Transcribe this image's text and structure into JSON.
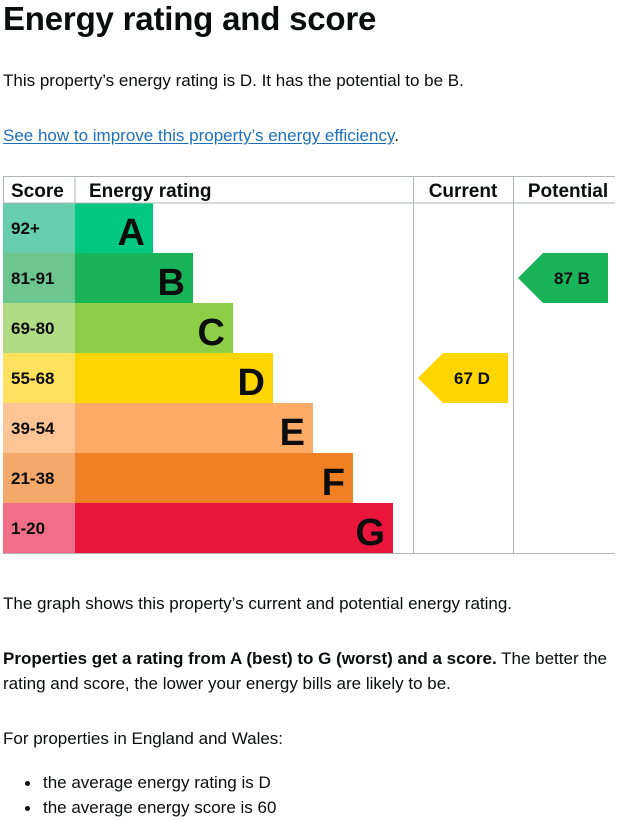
{
  "page": {
    "title": "Energy rating and score",
    "intro": "This property’s energy rating is D. It has the potential to be B.",
    "improve_link": "See how to improve this property’s energy efficiency",
    "improve_link_suffix": ".",
    "graph_caption": "The graph shows this property’s current and potential energy rating.",
    "ratings_bold": "Properties get a rating from A (best) to G (worst) and a score.",
    "ratings_rest": " The better the rating and score, the lower your energy bills are likely to be.",
    "for_properties": "For properties in England and Wales:",
    "bullets": [
      "the average energy rating is D",
      "the average energy score is 60"
    ]
  },
  "chart_data": {
    "type": "bar",
    "columns": [
      "Score",
      "Energy rating",
      "Current",
      "Potential"
    ],
    "bands": [
      {
        "band": "A",
        "score_range": "92+",
        "color": "#00c781",
        "score_color": "#66ceac"
      },
      {
        "band": "B",
        "score_range": "81-91",
        "color": "#19b459",
        "score_color": "#6dc68e"
      },
      {
        "band": "C",
        "score_range": "69-80",
        "color": "#8dce46",
        "score_color": "#b0dc85"
      },
      {
        "band": "D",
        "score_range": "55-68",
        "color": "#ffd500",
        "score_color": "#ffe15e"
      },
      {
        "band": "E",
        "score_range": "39-54",
        "color": "#fcaa65",
        "score_color": "#fdc596"
      },
      {
        "band": "F",
        "score_range": "21-38",
        "color": "#ef8023",
        "score_color": "#f4a86a"
      },
      {
        "band": "G",
        "score_range": "1-20",
        "color": "#e9153b",
        "score_color": "#f06e87"
      }
    ],
    "current": {
      "score": 67,
      "band": "D",
      "color": "#ffd500"
    },
    "potential": {
      "score": 87,
      "band": "B",
      "color": "#19b459"
    }
  }
}
